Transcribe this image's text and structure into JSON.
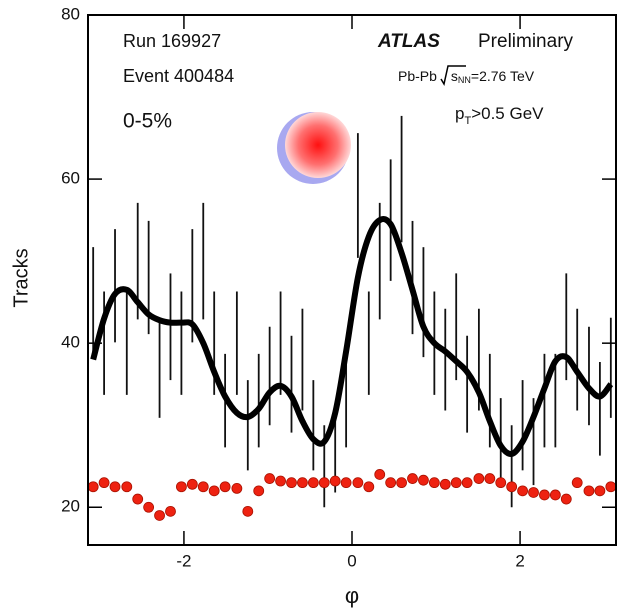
{
  "chart_data": {
    "type": "errorbar",
    "y_label": "Tracks",
    "x_label": "φ",
    "xlim": [
      -3.1416,
      3.1416
    ],
    "xticks": [
      -2,
      0,
      2
    ],
    "ylim": [
      15.4,
      80
    ],
    "yticks": [
      20,
      40,
      60,
      80
    ],
    "annotations": {
      "run": "Run 169927",
      "event": "Event 400484",
      "centrality": "0-5%",
      "experiment": "ATLAS",
      "status": "Preliminary",
      "system": [
        "Pb-Pb",
        "s",
        "NN",
        "=2.76 TeV"
      ],
      "cut": [
        "p",
        "T",
        ">0.5 GeV"
      ]
    },
    "x": [
      -3.08,
      -2.95,
      -2.82,
      -2.68,
      -2.55,
      -2.42,
      -2.29,
      -2.16,
      -2.03,
      -1.9,
      -1.77,
      -1.64,
      -1.51,
      -1.37,
      -1.24,
      -1.11,
      -0.98,
      -0.85,
      -0.72,
      -0.59,
      -0.46,
      -0.33,
      -0.2,
      -0.07,
      0.07,
      0.2,
      0.33,
      0.46,
      0.59,
      0.72,
      0.85,
      0.98,
      1.11,
      1.24,
      1.37,
      1.51,
      1.64,
      1.77,
      1.9,
      2.03,
      2.16,
      2.29,
      2.42,
      2.55,
      2.68,
      2.82,
      2.95,
      3.08
    ],
    "series": [
      {
        "kind": "errorbar",
        "color": "#111111",
        "values": [
          45,
          40,
          47,
          40,
          50,
          48,
          37,
          42,
          40,
          47,
          50,
          40,
          33,
          40,
          30,
          33,
          36,
          40,
          35,
          38,
          30,
          25,
          27,
          33,
          58,
          40,
          50,
          55,
          60,
          48,
          45,
          40,
          38,
          42,
          35,
          38,
          33,
          28,
          25,
          30,
          28,
          33,
          33,
          42,
          38,
          36,
          32,
          37
        ],
        "errors": [
          6.7,
          6.3,
          6.9,
          6.3,
          7.1,
          6.9,
          6.1,
          6.5,
          6.3,
          6.9,
          7.1,
          6.3,
          5.7,
          6.3,
          5.5,
          5.7,
          6,
          6.3,
          5.9,
          6.2,
          5.5,
          5,
          5.2,
          5.7,
          7.6,
          6.3,
          7.1,
          7.4,
          7.7,
          6.9,
          6.7,
          6.3,
          6.2,
          6.5,
          5.9,
          6.2,
          5.7,
          5.3,
          5,
          5.5,
          5.3,
          5.7,
          5.7,
          6.5,
          6.2,
          6,
          5.7,
          6.1
        ]
      },
      {
        "kind": "curve",
        "color": "#000000",
        "values": [
          38,
          43,
          46,
          46.5,
          45,
          43.5,
          42.8,
          42.5,
          42.5,
          42.3,
          40,
          36.5,
          33.5,
          31.5,
          31,
          32,
          34,
          34.8,
          33.5,
          30.5,
          28.3,
          28,
          31.5,
          39,
          48,
          53,
          55,
          54.5,
          51,
          46.5,
          42,
          40,
          39,
          37.8,
          36.5,
          34,
          30.5,
          27.5,
          26.5,
          28,
          31,
          34.5,
          37.8,
          38.3,
          36.5,
          34.5,
          33.5,
          35
        ]
      },
      {
        "kind": "dots",
        "color": "#ee2211",
        "values": [
          22.5,
          23,
          22.5,
          22.5,
          21,
          20,
          19,
          19.5,
          22.5,
          22.8,
          22.5,
          22,
          22.5,
          22.3,
          19.5,
          22,
          23.5,
          23.2,
          23,
          23,
          23,
          23,
          23.2,
          23,
          23,
          22.5,
          24,
          23,
          23,
          23.5,
          23.3,
          23,
          22.8,
          23,
          23,
          23.5,
          23.5,
          23,
          22.5,
          22,
          21.8,
          21.5,
          21.5,
          21,
          23,
          22,
          22,
          22.5
        ]
      }
    ]
  }
}
